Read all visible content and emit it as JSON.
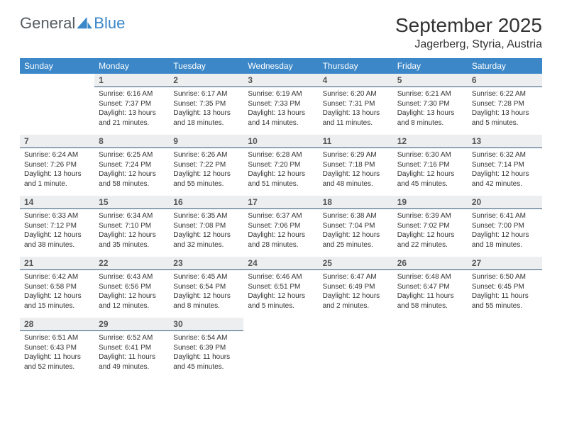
{
  "logo": {
    "general": "General",
    "blue": "Blue"
  },
  "title": "September 2025",
  "location": "Jagerberg, Styria, Austria",
  "colors": {
    "header_bg": "#3b87c8",
    "header_fg": "#ffffff",
    "daynum_bg": "#eceef0",
    "daynum_border": "#33597a",
    "text": "#333333"
  },
  "dayNames": [
    "Sunday",
    "Monday",
    "Tuesday",
    "Wednesday",
    "Thursday",
    "Friday",
    "Saturday"
  ],
  "weeks": [
    [
      {
        "n": "",
        "sr": "",
        "ss": "",
        "d1": "",
        "d2": ""
      },
      {
        "n": "1",
        "sr": "Sunrise: 6:16 AM",
        "ss": "Sunset: 7:37 PM",
        "d1": "Daylight: 13 hours",
        "d2": "and 21 minutes."
      },
      {
        "n": "2",
        "sr": "Sunrise: 6:17 AM",
        "ss": "Sunset: 7:35 PM",
        "d1": "Daylight: 13 hours",
        "d2": "and 18 minutes."
      },
      {
        "n": "3",
        "sr": "Sunrise: 6:19 AM",
        "ss": "Sunset: 7:33 PM",
        "d1": "Daylight: 13 hours",
        "d2": "and 14 minutes."
      },
      {
        "n": "4",
        "sr": "Sunrise: 6:20 AM",
        "ss": "Sunset: 7:31 PM",
        "d1": "Daylight: 13 hours",
        "d2": "and 11 minutes."
      },
      {
        "n": "5",
        "sr": "Sunrise: 6:21 AM",
        "ss": "Sunset: 7:30 PM",
        "d1": "Daylight: 13 hours",
        "d2": "and 8 minutes."
      },
      {
        "n": "6",
        "sr": "Sunrise: 6:22 AM",
        "ss": "Sunset: 7:28 PM",
        "d1": "Daylight: 13 hours",
        "d2": "and 5 minutes."
      }
    ],
    [
      {
        "n": "7",
        "sr": "Sunrise: 6:24 AM",
        "ss": "Sunset: 7:26 PM",
        "d1": "Daylight: 13 hours",
        "d2": "and 1 minute."
      },
      {
        "n": "8",
        "sr": "Sunrise: 6:25 AM",
        "ss": "Sunset: 7:24 PM",
        "d1": "Daylight: 12 hours",
        "d2": "and 58 minutes."
      },
      {
        "n": "9",
        "sr": "Sunrise: 6:26 AM",
        "ss": "Sunset: 7:22 PM",
        "d1": "Daylight: 12 hours",
        "d2": "and 55 minutes."
      },
      {
        "n": "10",
        "sr": "Sunrise: 6:28 AM",
        "ss": "Sunset: 7:20 PM",
        "d1": "Daylight: 12 hours",
        "d2": "and 51 minutes."
      },
      {
        "n": "11",
        "sr": "Sunrise: 6:29 AM",
        "ss": "Sunset: 7:18 PM",
        "d1": "Daylight: 12 hours",
        "d2": "and 48 minutes."
      },
      {
        "n": "12",
        "sr": "Sunrise: 6:30 AM",
        "ss": "Sunset: 7:16 PM",
        "d1": "Daylight: 12 hours",
        "d2": "and 45 minutes."
      },
      {
        "n": "13",
        "sr": "Sunrise: 6:32 AM",
        "ss": "Sunset: 7:14 PM",
        "d1": "Daylight: 12 hours",
        "d2": "and 42 minutes."
      }
    ],
    [
      {
        "n": "14",
        "sr": "Sunrise: 6:33 AM",
        "ss": "Sunset: 7:12 PM",
        "d1": "Daylight: 12 hours",
        "d2": "and 38 minutes."
      },
      {
        "n": "15",
        "sr": "Sunrise: 6:34 AM",
        "ss": "Sunset: 7:10 PM",
        "d1": "Daylight: 12 hours",
        "d2": "and 35 minutes."
      },
      {
        "n": "16",
        "sr": "Sunrise: 6:35 AM",
        "ss": "Sunset: 7:08 PM",
        "d1": "Daylight: 12 hours",
        "d2": "and 32 minutes."
      },
      {
        "n": "17",
        "sr": "Sunrise: 6:37 AM",
        "ss": "Sunset: 7:06 PM",
        "d1": "Daylight: 12 hours",
        "d2": "and 28 minutes."
      },
      {
        "n": "18",
        "sr": "Sunrise: 6:38 AM",
        "ss": "Sunset: 7:04 PM",
        "d1": "Daylight: 12 hours",
        "d2": "and 25 minutes."
      },
      {
        "n": "19",
        "sr": "Sunrise: 6:39 AM",
        "ss": "Sunset: 7:02 PM",
        "d1": "Daylight: 12 hours",
        "d2": "and 22 minutes."
      },
      {
        "n": "20",
        "sr": "Sunrise: 6:41 AM",
        "ss": "Sunset: 7:00 PM",
        "d1": "Daylight: 12 hours",
        "d2": "and 18 minutes."
      }
    ],
    [
      {
        "n": "21",
        "sr": "Sunrise: 6:42 AM",
        "ss": "Sunset: 6:58 PM",
        "d1": "Daylight: 12 hours",
        "d2": "and 15 minutes."
      },
      {
        "n": "22",
        "sr": "Sunrise: 6:43 AM",
        "ss": "Sunset: 6:56 PM",
        "d1": "Daylight: 12 hours",
        "d2": "and 12 minutes."
      },
      {
        "n": "23",
        "sr": "Sunrise: 6:45 AM",
        "ss": "Sunset: 6:54 PM",
        "d1": "Daylight: 12 hours",
        "d2": "and 8 minutes."
      },
      {
        "n": "24",
        "sr": "Sunrise: 6:46 AM",
        "ss": "Sunset: 6:51 PM",
        "d1": "Daylight: 12 hours",
        "d2": "and 5 minutes."
      },
      {
        "n": "25",
        "sr": "Sunrise: 6:47 AM",
        "ss": "Sunset: 6:49 PM",
        "d1": "Daylight: 12 hours",
        "d2": "and 2 minutes."
      },
      {
        "n": "26",
        "sr": "Sunrise: 6:48 AM",
        "ss": "Sunset: 6:47 PM",
        "d1": "Daylight: 11 hours",
        "d2": "and 58 minutes."
      },
      {
        "n": "27",
        "sr": "Sunrise: 6:50 AM",
        "ss": "Sunset: 6:45 PM",
        "d1": "Daylight: 11 hours",
        "d2": "and 55 minutes."
      }
    ],
    [
      {
        "n": "28",
        "sr": "Sunrise: 6:51 AM",
        "ss": "Sunset: 6:43 PM",
        "d1": "Daylight: 11 hours",
        "d2": "and 52 minutes."
      },
      {
        "n": "29",
        "sr": "Sunrise: 6:52 AM",
        "ss": "Sunset: 6:41 PM",
        "d1": "Daylight: 11 hours",
        "d2": "and 49 minutes."
      },
      {
        "n": "30",
        "sr": "Sunrise: 6:54 AM",
        "ss": "Sunset: 6:39 PM",
        "d1": "Daylight: 11 hours",
        "d2": "and 45 minutes."
      },
      {
        "n": "",
        "sr": "",
        "ss": "",
        "d1": "",
        "d2": ""
      },
      {
        "n": "",
        "sr": "",
        "ss": "",
        "d1": "",
        "d2": ""
      },
      {
        "n": "",
        "sr": "",
        "ss": "",
        "d1": "",
        "d2": ""
      },
      {
        "n": "",
        "sr": "",
        "ss": "",
        "d1": "",
        "d2": ""
      }
    ]
  ]
}
